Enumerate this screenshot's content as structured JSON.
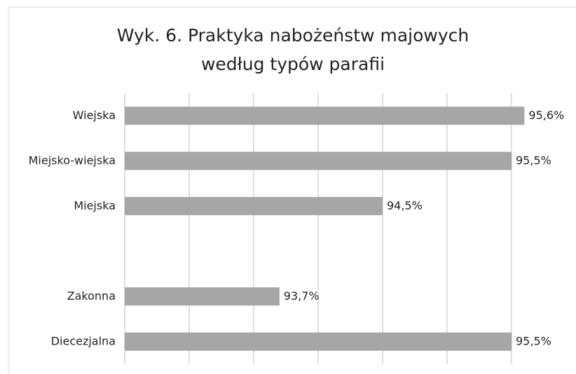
{
  "chart_data": {
    "type": "hbar",
    "title": [
      "Wyk. 6. Praktyka nabożeństw majowych",
      "według typów parafii"
    ],
    "categories": [
      "Wiejska",
      "Miejsko-wiejska",
      "Miejska",
      null,
      "Zakonna",
      "Diecezjalna"
    ],
    "values": [
      95.6,
      95.5,
      94.5,
      null,
      93.7,
      95.5
    ],
    "value_labels": [
      "95,6%",
      "95,5%",
      "94,5%",
      null,
      "93,7%",
      "95,5%"
    ],
    "color": "#a6a6a7",
    "xlim": [
      92.5,
      96.0
    ],
    "xticks": [
      92.5,
      93,
      93.5,
      94,
      94.5,
      95,
      95.5
    ],
    "grid": true
  }
}
